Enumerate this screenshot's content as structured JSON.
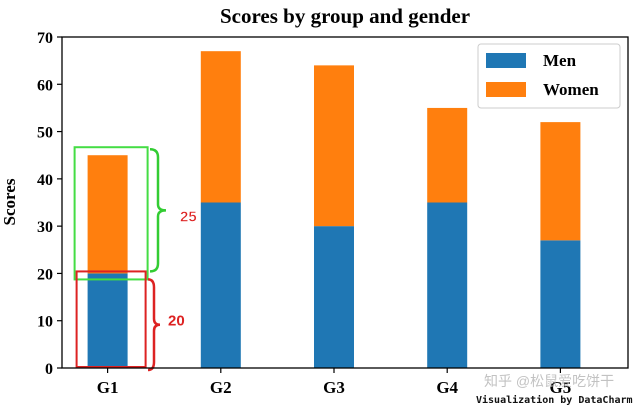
{
  "chart_data": {
    "type": "bar",
    "stacked": true,
    "title": "Scores by group and gender",
    "xlabel": "",
    "ylabel": "Scores",
    "categories": [
      "G1",
      "G2",
      "G3",
      "G4",
      "G5"
    ],
    "ylim": [
      0,
      70
    ],
    "yticks": [
      0,
      10,
      20,
      30,
      40,
      50,
      60,
      70
    ],
    "series": [
      {
        "name": "Men",
        "values": [
          20,
          35,
          30,
          35,
          27
        ],
        "color": "#1f77b4"
      },
      {
        "name": "Women",
        "values": [
          25,
          32,
          34,
          20,
          25
        ],
        "color": "#ff7f0e"
      }
    ],
    "legend_position": "top-right",
    "grid": false,
    "annotations": [
      {
        "label": "25",
        "target": "G1 Women segment",
        "color": "#22cc22"
      },
      {
        "label": "20",
        "target": "G1 Men segment",
        "color": "#dd2222"
      }
    ]
  },
  "footer": {
    "credit": "Visualization by DataCharm",
    "watermark": "知乎 @松鼠爱吃饼干"
  }
}
